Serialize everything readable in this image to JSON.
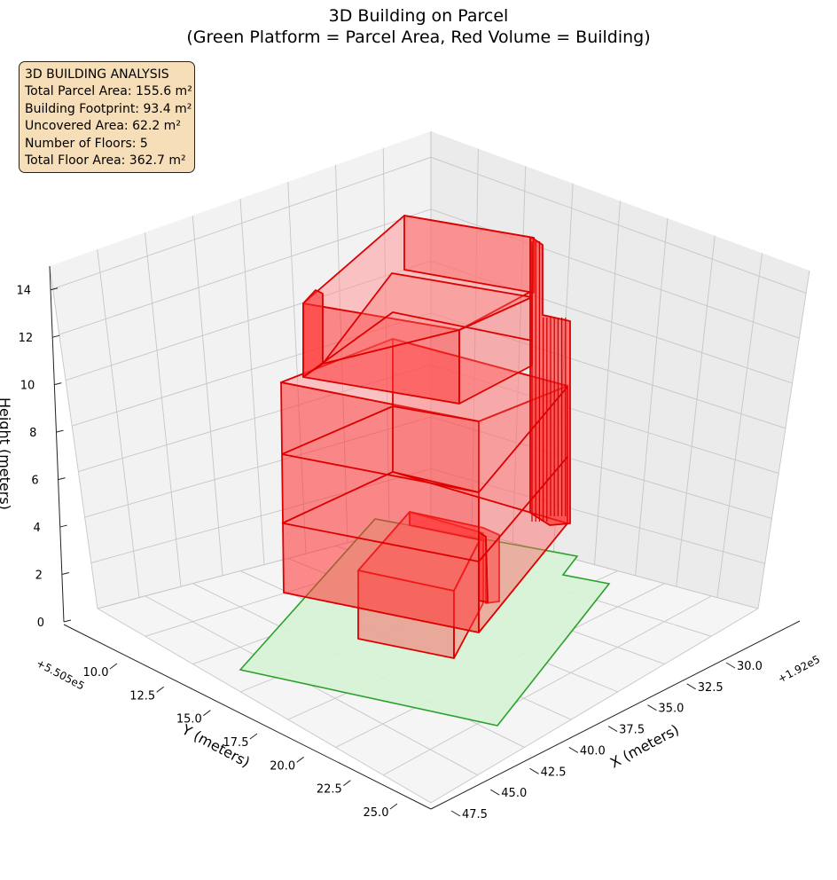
{
  "chart_data": {
    "type": "3d-volume",
    "title_line1": "3D Building on Parcel",
    "title_line2": "(Green Platform = Parcel Area, Red Volume = Building)",
    "xlabel": "X (meters)",
    "ylabel": "Y (meters)",
    "zlabel": "Height (meters)",
    "x_ticks": [
      "30.0",
      "32.5",
      "35.0",
      "37.5",
      "40.0",
      "42.5",
      "45.0",
      "47.5"
    ],
    "x_offset": "+1.92e5",
    "y_ticks": [
      "10.0",
      "12.5",
      "15.0",
      "17.5",
      "20.0",
      "22.5",
      "25.0"
    ],
    "y_offset": "+5.505e5",
    "z_ticks": [
      "0",
      "2",
      "4",
      "6",
      "8",
      "10",
      "12",
      "14"
    ],
    "zlim": [
      0,
      15
    ],
    "grid": true,
    "colors": {
      "parcel_fill": "#d6f2d6",
      "parcel_edge": "#2ca02c",
      "building_fill": "#ff0000",
      "building_edge": "#dd0000",
      "infobox": "#f6deb8"
    },
    "parcel_area_m2": 155.6,
    "building_footprint_m2": 93.4,
    "uncovered_area_m2": 62.2,
    "floors": 5,
    "total_floor_area_m2": 362.7
  },
  "info": {
    "heading": "3D BUILDING ANALYSIS",
    "line1": "Total Parcel Area: 155.6 m²",
    "line2": "Building Footprint: 93.4 m²",
    "line3": "Uncovered Area: 62.2 m²",
    "line4": "Number of Floors: 5",
    "line5": "Total Floor Area: 362.7 m²"
  }
}
